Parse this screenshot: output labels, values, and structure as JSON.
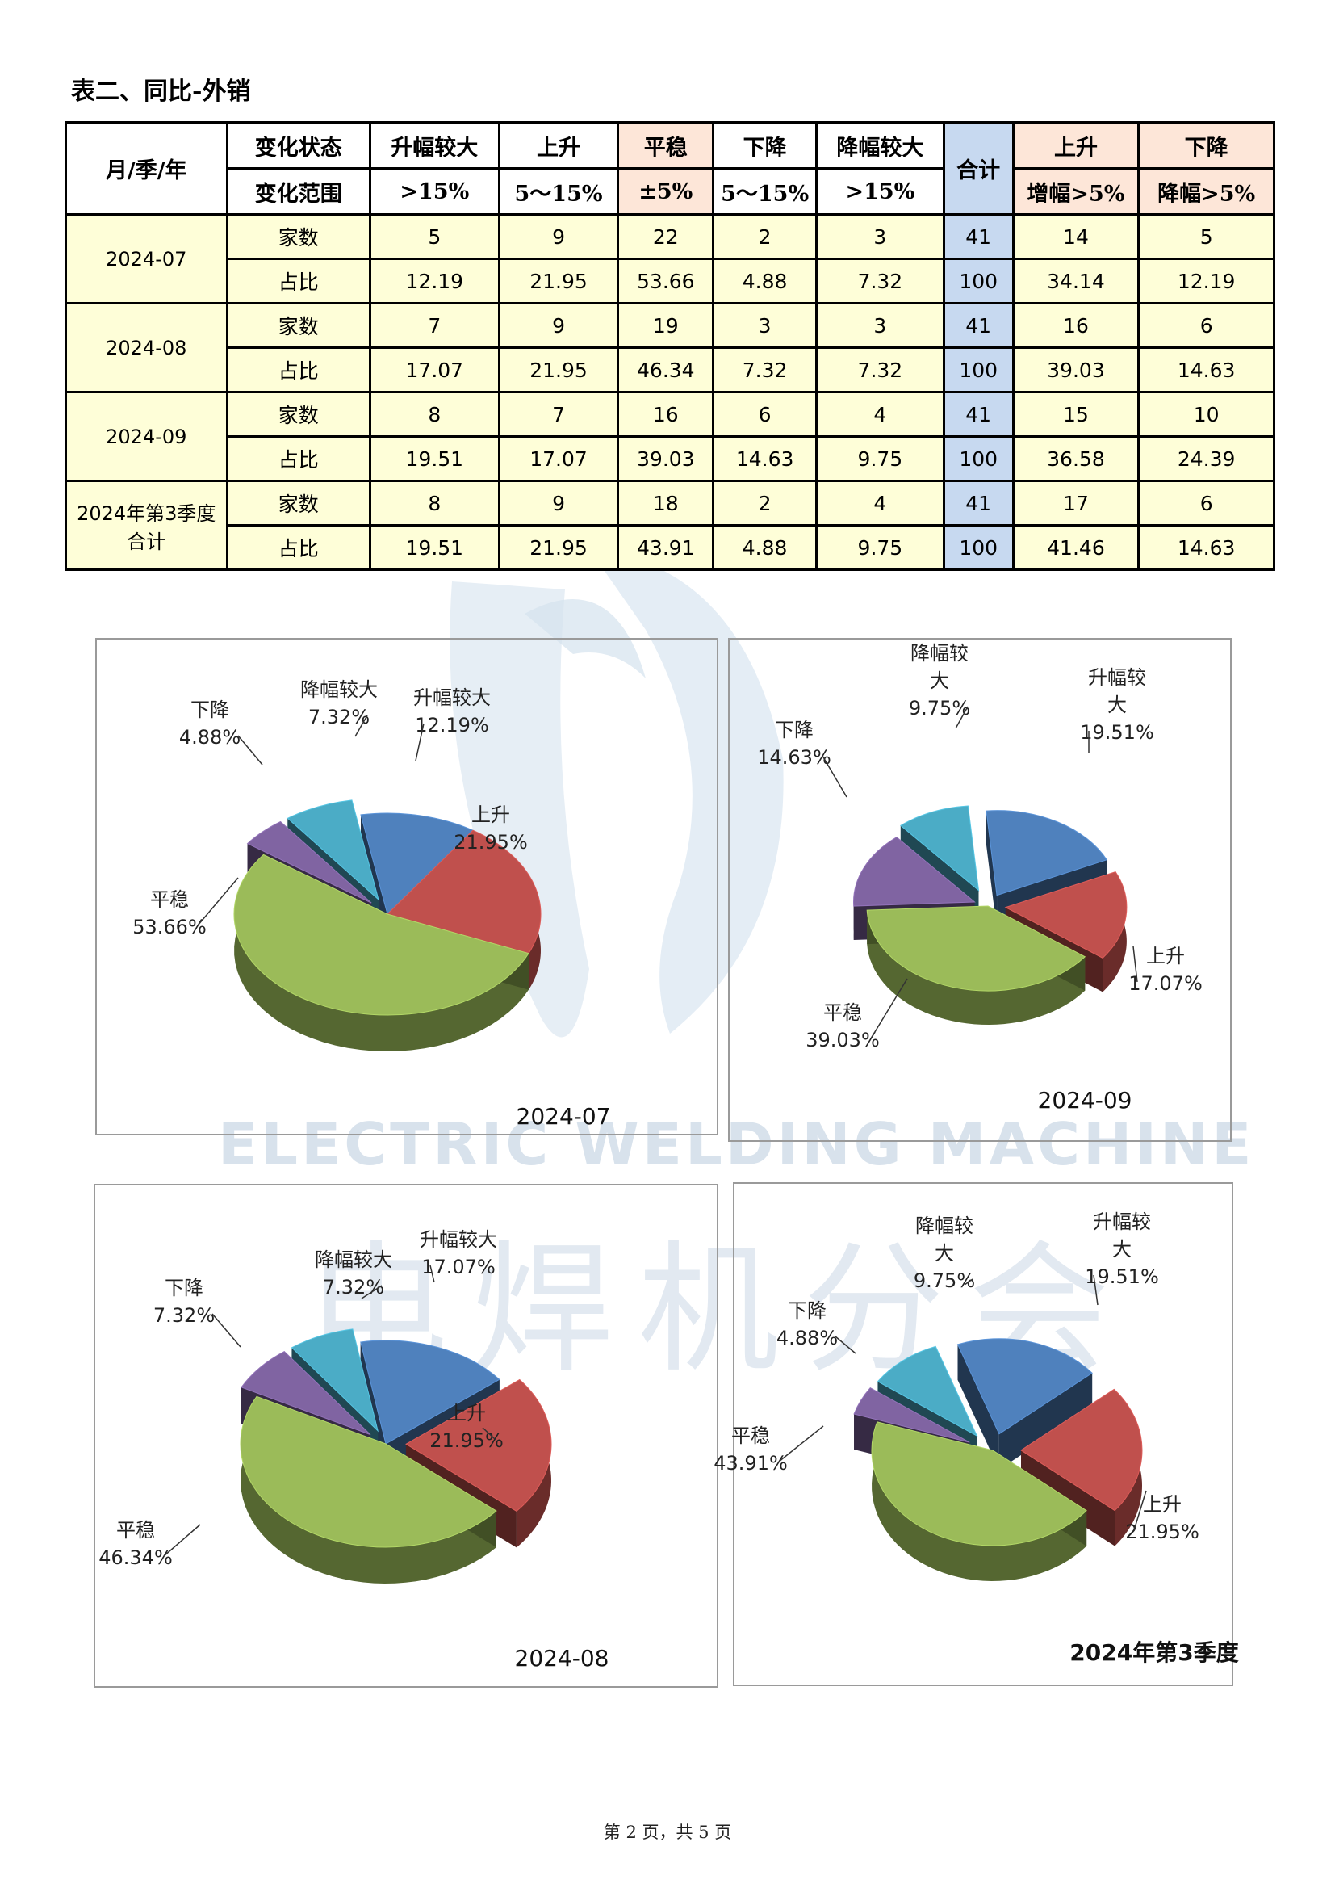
{
  "title": "表二、同比-外销",
  "table": {
    "corner": "月/季/年",
    "row1_label": "变化状态",
    "row2_label": "变化范围",
    "states": [
      "升幅较大",
      "上升",
      "平稳",
      "下降",
      "降幅较大"
    ],
    "ranges": [
      ">15%",
      "5～15%",
      "±5%",
      "5～15%",
      ">15%"
    ],
    "total": "合计",
    "up_label": "上升",
    "up_range": "增幅>5%",
    "down_label": "下降",
    "down_range": "降幅>5%",
    "groups": [
      {
        "period": "2024-07",
        "rows": [
          {
            "label": "家数",
            "vals": [
              "5",
              "9",
              "22",
              "2",
              "3",
              "41",
              "14",
              "5"
            ]
          },
          {
            "label": "占比",
            "vals": [
              "12.19",
              "21.95",
              "53.66",
              "4.88",
              "7.32",
              "100",
              "34.14",
              "12.19"
            ]
          }
        ]
      },
      {
        "period": "2024-08",
        "rows": [
          {
            "label": "家数",
            "vals": [
              "7",
              "9",
              "19",
              "3",
              "3",
              "41",
              "16",
              "6"
            ]
          },
          {
            "label": "占比",
            "vals": [
              "17.07",
              "21.95",
              "46.34",
              "7.32",
              "7.32",
              "100",
              "39.03",
              "14.63"
            ]
          }
        ]
      },
      {
        "period": "2024-09",
        "rows": [
          {
            "label": "家数",
            "vals": [
              "8",
              "7",
              "16",
              "6",
              "4",
              "41",
              "15",
              "10"
            ]
          },
          {
            "label": "占比",
            "vals": [
              "19.51",
              "17.07",
              "39.03",
              "14.63",
              "9.75",
              "100",
              "36.58",
              "24.39"
            ]
          }
        ]
      },
      {
        "period": "2024年第3季度\n合计",
        "rows": [
          {
            "label": "家数",
            "vals": [
              "8",
              "9",
              "18",
              "2",
              "4",
              "41",
              "17",
              "6"
            ]
          },
          {
            "label": "占比",
            "vals": [
              "19.51",
              "21.95",
              "43.91",
              "4.88",
              "9.75",
              "100",
              "41.46",
              "14.63"
            ]
          }
        ]
      }
    ]
  },
  "colors": {
    "升幅较大": "#4f81bd",
    "上升": "#c0504d",
    "平稳": "#9bbb59",
    "下降": "#8064a2",
    "降幅较大": "#4bacc6"
  },
  "chart_data": [
    {
      "type": "pie",
      "title": "2024-07",
      "slices": [
        {
          "name": "升幅较大",
          "value": 12.19,
          "label": "12.19%",
          "name_lines": [
            "升幅较大"
          ]
        },
        {
          "name": "上升",
          "value": 21.95,
          "label": "21.95%",
          "name_lines": [
            "上升"
          ]
        },
        {
          "name": "平稳",
          "value": 53.66,
          "label": "53.66%",
          "name_lines": [
            "平稳"
          ]
        },
        {
          "name": "下降",
          "value": 4.88,
          "label": "4.88%",
          "name_lines": [
            "下降"
          ]
        },
        {
          "name": "降幅较大",
          "value": 7.32,
          "label": "7.32%",
          "name_lines": [
            "降幅较大"
          ]
        }
      ]
    },
    {
      "type": "pie",
      "title": "2024-09",
      "slices": [
        {
          "name": "升幅较大",
          "value": 19.51,
          "label": "19.51%",
          "name_lines": [
            "升幅较",
            "大"
          ]
        },
        {
          "name": "上升",
          "value": 17.07,
          "label": "17.07%",
          "name_lines": [
            "上升"
          ]
        },
        {
          "name": "平稳",
          "value": 39.03,
          "label": "39.03%",
          "name_lines": [
            "平稳"
          ]
        },
        {
          "name": "下降",
          "value": 14.63,
          "label": "14.63%",
          "name_lines": [
            "下降"
          ]
        },
        {
          "name": "降幅较大",
          "value": 9.75,
          "label": "9.75%",
          "name_lines": [
            "降幅较",
            "大"
          ]
        }
      ]
    },
    {
      "type": "pie",
      "title": "2024-08",
      "slices": [
        {
          "name": "升幅较大",
          "value": 17.07,
          "label": "17.07%",
          "name_lines": [
            "升幅较大"
          ]
        },
        {
          "name": "上升",
          "value": 21.95,
          "label": "21.95%",
          "name_lines": [
            "上升"
          ]
        },
        {
          "name": "平稳",
          "value": 46.34,
          "label": "46.34%",
          "name_lines": [
            "平稳"
          ]
        },
        {
          "name": "下降",
          "value": 7.32,
          "label": "7.32%",
          "name_lines": [
            "下降"
          ]
        },
        {
          "name": "降幅较大",
          "value": 7.32,
          "label": "7.32%",
          "name_lines": [
            "降幅较大"
          ]
        }
      ]
    },
    {
      "type": "pie",
      "title": "2024年第3季度",
      "slices": [
        {
          "name": "升幅较大",
          "value": 19.51,
          "label": "19.51%",
          "name_lines": [
            "升幅较",
            "大"
          ]
        },
        {
          "name": "上升",
          "value": 21.95,
          "label": "21.95%",
          "name_lines": [
            "上升"
          ]
        },
        {
          "name": "平稳",
          "value": 43.91,
          "label": "43.91%",
          "name_lines": [
            "平稳"
          ]
        },
        {
          "name": "下降",
          "value": 4.88,
          "label": "4.88%",
          "name_lines": [
            "下降"
          ]
        },
        {
          "name": "降幅较大",
          "value": 9.75,
          "label": "9.75%",
          "name_lines": [
            "降幅较",
            "大"
          ]
        }
      ]
    }
  ],
  "watermark": {
    "en": "ELECTRIC WELDING MACHINE",
    "cn": "电焊机分会"
  },
  "footer": "第 2 页，共 5 页"
}
